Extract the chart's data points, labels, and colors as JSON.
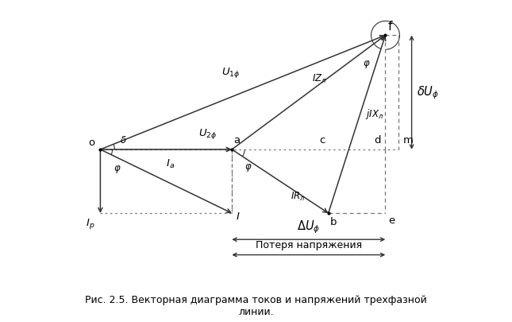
{
  "title_line1": "Рис. 2.5. Векторная диаграмма токов и напряжений трехфазной",
  "title_line2": "линии.",
  "background_color": "#ffffff",
  "points": {
    "o": [
      0.0,
      0.0
    ],
    "a": [
      3.0,
      0.0
    ],
    "b": [
      5.2,
      -1.45
    ],
    "c": [
      5.2,
      0.0
    ],
    "d": [
      6.5,
      0.0
    ],
    "m": [
      6.85,
      0.0
    ],
    "e": [
      6.5,
      -1.45
    ],
    "f": [
      6.5,
      2.6
    ]
  },
  "I_pt": [
    3.0,
    -1.45
  ],
  "Ip_pt": [
    0.0,
    -1.45
  ],
  "line_color": "#333333",
  "dashed_color": "#777777",
  "right_x": 7.1,
  "y_arr_delta": -2.05,
  "y_arr_loss": -2.4,
  "xlim": [
    -0.7,
    7.8
  ],
  "ylim": [
    -2.9,
    3.2
  ],
  "figsize": [
    6.45,
    4.06
  ],
  "dpi": 100
}
